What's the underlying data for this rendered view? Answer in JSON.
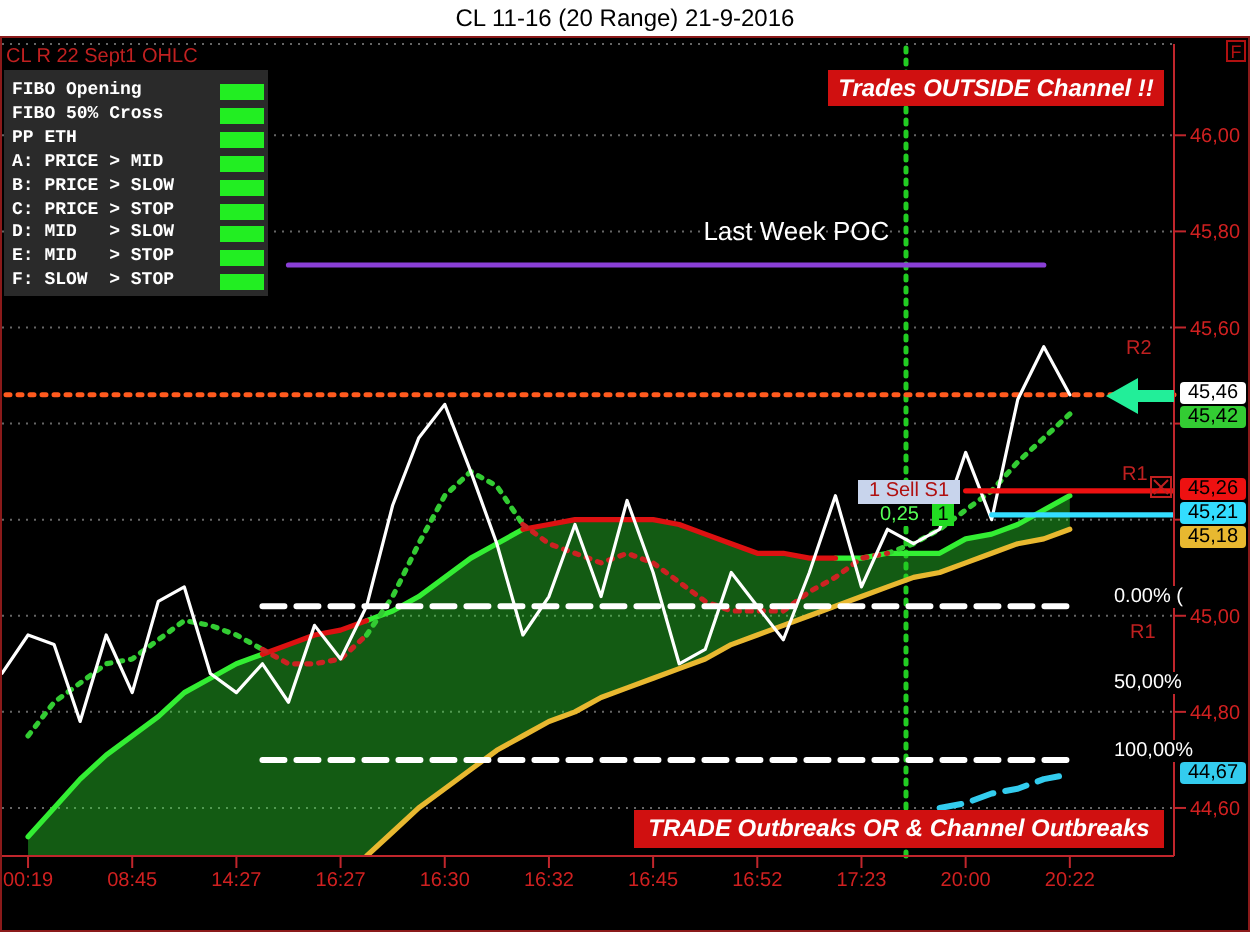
{
  "chart_data": {
    "type": "line",
    "title": "CL 11-16 (20 Range)  21-9-2016",
    "categories": [
      null,
      "00:19",
      null,
      null,
      null,
      "08:45",
      null,
      null,
      null,
      "14:27",
      null,
      null,
      null,
      "16:27",
      null,
      null,
      null,
      "16:30",
      null,
      null,
      null,
      "16:32",
      null,
      null,
      null,
      "16:45",
      null,
      null,
      null,
      "16:52",
      null,
      null,
      null,
      "17:23",
      null,
      null,
      null,
      "20:00",
      null,
      null,
      null,
      "20:22",
      null,
      null,
      null,
      null
    ],
    "series": [
      {
        "type": "line",
        "color": "#33ee33",
        "values": [
          null,
          44.54,
          44.6,
          44.66,
          44.71,
          44.75,
          44.79,
          44.84,
          44.87,
          44.9,
          44.92,
          null,
          null,
          null,
          44.99,
          45.01,
          45.04,
          45.08,
          45.12,
          45.15,
          45.18,
          null,
          null,
          null,
          null,
          null,
          null,
          null,
          null,
          null,
          null,
          null,
          45.12,
          45.12,
          45.13,
          45.13,
          45.13,
          45.16,
          45.17,
          45.19,
          45.22,
          45.25,
          null,
          null,
          null,
          null
        ],
        "upper": [
          null,
          44.54,
          44.6,
          44.66,
          44.71,
          44.75,
          44.79,
          44.84,
          44.87,
          44.9,
          44.92,
          44.94,
          44.96,
          44.97,
          44.99,
          45.01,
          45.04,
          45.08,
          45.12,
          45.15,
          45.18,
          45.19,
          45.2,
          45.2,
          45.2,
          45.2,
          45.19,
          45.17,
          45.15,
          45.13,
          45.13,
          45.12,
          45.12,
          45.12,
          45.13,
          45.13,
          45.13,
          45.16,
          45.17,
          45.19,
          45.22,
          45.25,
          null,
          null,
          null,
          null
        ],
        "lower": [
          null,
          44.5,
          44.5,
          44.5,
          44.5,
          44.5,
          44.5,
          44.5,
          44.5,
          44.5,
          44.5,
          44.5,
          44.5,
          44.5,
          44.5,
          44.55,
          44.6,
          44.64,
          44.68,
          44.72,
          44.75,
          44.78,
          44.8,
          44.83,
          44.85,
          44.87,
          44.89,
          44.91,
          44.94,
          44.96,
          44.98,
          45.0,
          45.02,
          45.04,
          45.06,
          45.08,
          45.09,
          45.11,
          45.13,
          45.15,
          45.16,
          45.18,
          null,
          null,
          null,
          null
        ]
      },
      {
        "type": "line",
        "color": "#dd1111",
        "values": [
          null,
          null,
          null,
          null,
          null,
          null,
          null,
          null,
          null,
          null,
          44.92,
          44.94,
          44.96,
          44.97,
          44.99,
          null,
          null,
          null,
          null,
          null,
          45.18,
          45.19,
          45.2,
          45.2,
          45.2,
          45.2,
          45.19,
          45.17,
          45.15,
          45.13,
          45.13,
          45.12,
          45.12,
          null,
          null,
          null,
          null,
          null,
          null,
          null,
          null,
          null,
          null,
          null,
          null,
          null
        ]
      },
      {
        "type": "line",
        "color": "#e8b830",
        "values": [
          null,
          null,
          null,
          null,
          null,
          null,
          null,
          null,
          null,
          null,
          null,
          null,
          null,
          null,
          44.5,
          44.55,
          44.6,
          44.64,
          44.68,
          44.72,
          44.75,
          44.78,
          44.8,
          44.83,
          44.85,
          44.87,
          44.89,
          44.91,
          44.94,
          44.96,
          44.98,
          45.0,
          45.02,
          45.04,
          45.06,
          45.08,
          45.09,
          45.11,
          45.13,
          45.15,
          45.16,
          45.18,
          null,
          null,
          null,
          null
        ]
      },
      {
        "type": "line",
        "color": "#33cc33",
        "line_style": "dotted",
        "values": [
          null,
          44.75,
          44.82,
          44.86,
          44.9,
          44.91,
          44.95,
          44.99,
          44.98,
          44.96,
          44.93,
          null,
          null,
          null,
          44.96,
          45.04,
          45.15,
          45.25,
          45.3,
          45.27,
          45.19,
          null,
          null,
          null,
          null,
          null,
          null,
          null,
          null,
          null,
          null,
          null,
          null,
          null,
          45.13,
          45.15,
          45.18,
          45.22,
          45.26,
          45.32,
          45.37,
          45.42,
          null,
          null,
          null,
          null
        ]
      },
      {
        "type": "line",
        "color": "#cc2222",
        "line_style": "dotted",
        "values": [
          null,
          null,
          null,
          null,
          null,
          null,
          null,
          null,
          null,
          null,
          44.93,
          44.9,
          44.9,
          44.91,
          44.96,
          null,
          null,
          null,
          null,
          null,
          45.19,
          45.15,
          45.13,
          45.11,
          45.13,
          45.11,
          45.07,
          45.03,
          45.01,
          45.01,
          45.01,
          45.05,
          45.08,
          45.12,
          45.13,
          null,
          null,
          null,
          null,
          null,
          null,
          null,
          null,
          null,
          null,
          null
        ]
      },
      {
        "type": "line",
        "color": "#ffffff",
        "values": [
          44.88,
          44.96,
          44.94,
          44.78,
          44.96,
          44.84,
          45.03,
          45.06,
          44.88,
          44.84,
          44.9,
          44.82,
          44.98,
          44.91,
          45.02,
          45.23,
          45.37,
          45.44,
          45.3,
          45.15,
          44.96,
          45.04,
          45.19,
          45.04,
          45.24,
          45.09,
          44.9,
          44.93,
          45.09,
          45.02,
          44.95,
          45.09,
          45.25,
          45.06,
          45.18,
          45.15,
          45.18,
          45.34,
          45.2,
          45.45,
          45.56,
          45.46,
          null,
          null,
          null,
          null
        ]
      },
      {
        "name": "Last Week POC",
        "color": "#8a3fd6",
        "values": [
          null,
          null,
          null,
          null,
          null,
          null,
          null,
          null,
          null,
          null,
          null,
          45.73,
          45.73,
          45.73,
          45.73,
          45.73,
          45.73,
          45.73,
          45.73,
          45.73,
          45.73,
          45.73,
          45.73,
          45.73,
          45.73,
          45.73,
          45.73,
          45.73,
          45.73,
          45.73,
          45.73,
          45.73,
          45.73,
          45.73,
          45.73,
          45.73,
          45.73,
          45.73,
          45.73,
          45.73,
          45.73,
          null,
          null,
          null,
          null,
          null
        ]
      },
      {
        "type": "line",
        "name": "0.00% (",
        "color": "#ffffff",
        "line_style": "dashed",
        "values": [
          null,
          null,
          null,
          null,
          null,
          null,
          null,
          null,
          null,
          null,
          45.02,
          45.02,
          45.02,
          45.02,
          45.02,
          45.02,
          45.02,
          45.02,
          45.02,
          45.02,
          45.02,
          45.02,
          45.02,
          45.02,
          45.02,
          45.02,
          45.02,
          45.02,
          45.02,
          45.02,
          45.02,
          45.02,
          45.02,
          45.02,
          45.02,
          45.02,
          45.02,
          45.02,
          45.02,
          45.02,
          45.02,
          45.02,
          null,
          null,
          null,
          null
        ]
      },
      {
        "type": "line",
        "name": "100,00%",
        "color": "#ffffff",
        "line_style": "dashed",
        "values": [
          null,
          null,
          null,
          null,
          null,
          null,
          null,
          null,
          null,
          null,
          44.7,
          44.7,
          44.7,
          44.7,
          44.7,
          44.7,
          44.7,
          44.7,
          44.7,
          44.7,
          44.7,
          44.7,
          44.7,
          44.7,
          44.7,
          44.7,
          44.7,
          44.7,
          44.7,
          44.7,
          44.7,
          44.7,
          44.7,
          44.7,
          44.7,
          44.7,
          44.7,
          44.7,
          44.7,
          44.7,
          44.7,
          44.7,
          null,
          null,
          null,
          null
        ]
      },
      {
        "type": "line",
        "color": "#ee1111",
        "values": [
          null,
          null,
          null,
          null,
          null,
          null,
          null,
          null,
          null,
          null,
          null,
          null,
          null,
          null,
          null,
          null,
          null,
          null,
          null,
          null,
          null,
          null,
          null,
          null,
          null,
          null,
          null,
          null,
          null,
          null,
          null,
          null,
          null,
          null,
          null,
          null,
          null,
          45.26,
          45.26,
          45.26,
          45.26,
          45.26,
          45.26,
          45.26,
          45.26,
          45.26
        ],
        "value_labels": [
          null,
          null,
          null,
          null,
          null,
          null,
          null,
          null,
          null,
          null,
          null,
          null,
          null,
          null,
          null,
          null,
          null,
          null,
          null,
          null,
          null,
          null,
          null,
          null,
          null,
          null,
          null,
          null,
          null,
          null,
          null,
          null,
          null,
          null,
          null,
          null,
          null,
          null,
          null,
          null,
          null,
          null,
          null,
          null,
          null,
          "45,26"
        ]
      },
      {
        "type": "line",
        "color": "#33ddff",
        "values": [
          null,
          null,
          null,
          null,
          null,
          null,
          null,
          null,
          null,
          null,
          null,
          null,
          null,
          null,
          null,
          null,
          null,
          null,
          null,
          null,
          null,
          null,
          null,
          null,
          null,
          null,
          null,
          null,
          null,
          null,
          null,
          null,
          null,
          null,
          null,
          null,
          null,
          null,
          45.21,
          45.21,
          45.21,
          45.21,
          45.21,
          45.21,
          45.21,
          45.21
        ],
        "value_labels": [
          null,
          null,
          null,
          null,
          null,
          null,
          null,
          null,
          null,
          null,
          null,
          null,
          null,
          null,
          null,
          null,
          null,
          null,
          null,
          null,
          null,
          null,
          null,
          null,
          null,
          null,
          null,
          null,
          null,
          null,
          null,
          null,
          null,
          null,
          null,
          null,
          null,
          null,
          null,
          null,
          null,
          null,
          null,
          null,
          null,
          "45,21"
        ]
      },
      {
        "color": "#33ccee",
        "line_style": "dashed",
        "values": [
          null,
          null,
          null,
          null,
          null,
          null,
          null,
          null,
          null,
          null,
          null,
          null,
          null,
          null,
          null,
          null,
          null,
          null,
          null,
          null,
          null,
          null,
          null,
          null,
          null,
          null,
          null,
          null,
          null,
          null,
          null,
          null,
          null,
          null,
          null,
          null,
          44.6,
          44.61,
          44.63,
          44.64,
          44.66,
          44.67,
          null,
          null,
          null,
          null
        ]
      }
    ],
    "ylim": [
      44.5,
      46.19
    ],
    "yticks": [
      {
        "value": 44.6,
        "label": "44,60"
      },
      {
        "value": 44.8,
        "label": "44,80"
      },
      {
        "value": 45.0,
        "label": "45,00"
      },
      {
        "value": 45.2,
        "label": null
      },
      {
        "value": 45.4,
        "label": null
      },
      {
        "value": 45.6,
        "label": "45,60"
      },
      {
        "value": 45.8,
        "label": "45,80"
      },
      {
        "value": 46.0,
        "label": "46,00"
      }
    ],
    "grid": "y",
    "ref_lines": [
      {
        "axis": "y",
        "value": 45.46,
        "label": "R2",
        "color": "#ff5a1e",
        "line_style": "dotted"
      }
    ],
    "annotations": [
      "CL R 22 Sept1 OHLC",
      "FIBO Opening",
      "FIBO 50% Cross",
      "PP ETH",
      "A: PRICE > MID",
      "B: PRICE > SLOW",
      "C: PRICE > STOP",
      "D: MID   > SLOW",
      "E: MID   > STOP",
      "F: SLOW  > STOP",
      "Trades OUTSIDE Channel !!",
      "TRADE Outbreaks OR & Channel Outbreaks",
      "50,00%",
      {
        "text": "R1",
        "y": 45.26
      },
      "R1",
      "1  Sell S1",
      "0,25",
      "1",
      "F",
      "45,46",
      "45,42",
      "45,18",
      "44,67"
    ]
  }
}
